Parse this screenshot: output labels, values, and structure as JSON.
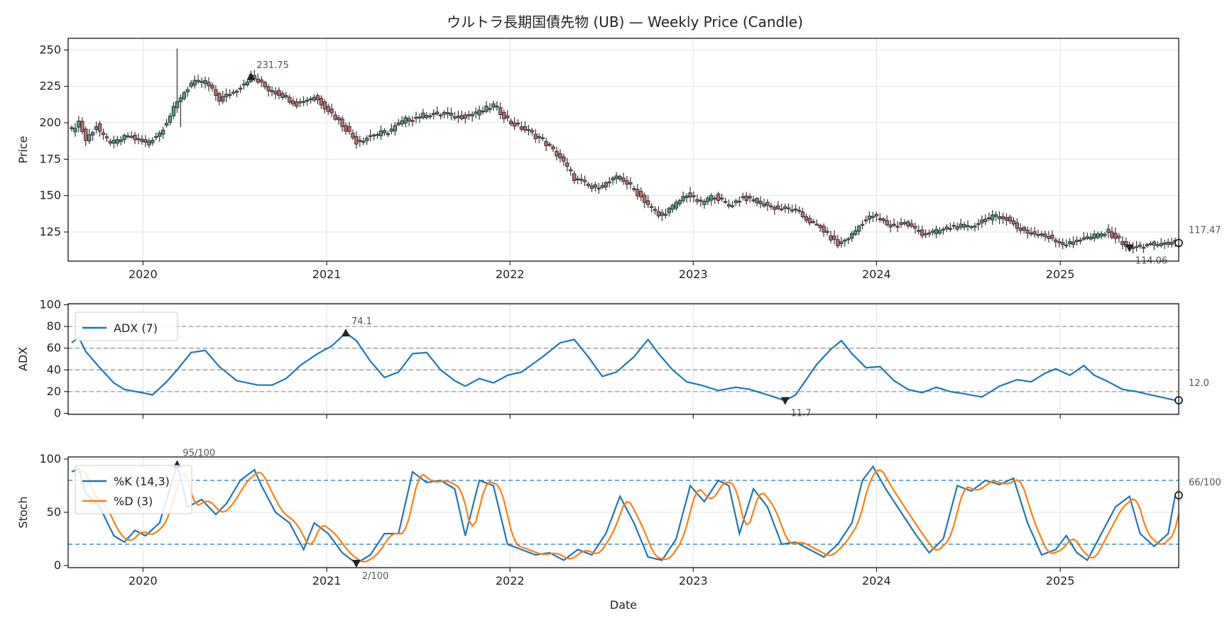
{
  "chart_data": {
    "title": "ウルトラ長期国債先物 (UB) — Weekly Price (Candle)",
    "xlabel": "Date",
    "x_ticks": [
      "2020",
      "2021",
      "2022",
      "2023",
      "2024",
      "2025"
    ],
    "colors": {
      "candle": "#333333",
      "up_fill": "#4b9a8a",
      "down_fill": "#c06a6a",
      "adx": "#1f77b4",
      "k": "#1f77b4",
      "d": "#ff7f0e",
      "hline_gray": "#999999",
      "hline_blue": "#1f77b4"
    },
    "panels": [
      {
        "name": "price",
        "type": "candlestick",
        "ylabel": "Price",
        "ylim": [
          105,
          258
        ],
        "yticks": [
          125,
          150,
          175,
          200,
          225,
          250
        ],
        "grid": true,
        "annotations": {
          "max": {
            "date": "2020-08-03",
            "value": 231.75,
            "label": "231.75"
          },
          "min": {
            "date": "2025-05-19",
            "value": 114.06,
            "label": "114.06"
          },
          "last": {
            "value": 117.47,
            "label": "117.47"
          }
        },
        "anchors": [
          [
            "2019-08-12",
            195
          ],
          [
            "2019-08-26",
            201
          ],
          [
            "2019-09-09",
            188
          ],
          [
            "2019-09-30",
            198
          ],
          [
            "2019-10-14",
            190
          ],
          [
            "2019-11-04",
            186
          ],
          [
            "2019-12-02",
            191
          ],
          [
            "2020-01-06",
            186
          ],
          [
            "2020-02-03",
            193
          ],
          [
            "2020-02-24",
            205
          ],
          [
            "2020-03-16",
            218
          ],
          [
            "2020-04-06",
            227
          ],
          [
            "2020-05-04",
            228
          ],
          [
            "2020-06-01",
            216
          ],
          [
            "2020-06-29",
            221
          ],
          [
            "2020-08-03",
            231.75
          ],
          [
            "2020-09-07",
            223
          ],
          [
            "2020-10-05",
            219
          ],
          [
            "2020-11-02",
            213
          ],
          [
            "2020-12-07",
            218
          ],
          [
            "2021-01-04",
            209
          ],
          [
            "2021-02-08",
            196
          ],
          [
            "2021-03-01",
            187
          ],
          [
            "2021-03-29",
            191
          ],
          [
            "2021-05-03",
            194
          ],
          [
            "2021-06-07",
            202
          ],
          [
            "2021-07-12",
            205
          ],
          [
            "2021-08-16",
            206
          ],
          [
            "2021-09-20",
            204
          ],
          [
            "2021-11-01",
            207
          ],
          [
            "2021-11-29",
            212
          ],
          [
            "2022-01-03",
            200
          ],
          [
            "2022-02-07",
            194
          ],
          [
            "2022-03-07",
            188
          ],
          [
            "2022-04-11",
            176
          ],
          [
            "2022-05-09",
            162
          ],
          [
            "2022-06-13",
            155
          ],
          [
            "2022-07-11",
            158
          ],
          [
            "2022-08-08",
            163
          ],
          [
            "2022-09-05",
            154
          ],
          [
            "2022-10-03",
            144
          ],
          [
            "2022-10-24",
            136
          ],
          [
            "2022-11-21",
            142
          ],
          [
            "2022-12-19",
            151
          ],
          [
            "2023-01-16",
            145
          ],
          [
            "2023-02-13",
            150
          ],
          [
            "2023-03-13",
            143
          ],
          [
            "2023-04-10",
            149
          ],
          [
            "2023-05-15",
            145
          ],
          [
            "2023-06-19",
            141
          ],
          [
            "2023-07-17",
            141
          ],
          [
            "2023-08-14",
            134
          ],
          [
            "2023-09-18",
            126
          ],
          [
            "2023-10-16",
            116
          ],
          [
            "2023-11-13",
            123
          ],
          [
            "2023-12-04",
            132
          ],
          [
            "2023-12-25",
            136
          ],
          [
            "2024-01-29",
            129
          ],
          [
            "2024-02-26",
            131
          ],
          [
            "2024-04-01",
            124
          ],
          [
            "2024-04-29",
            125
          ],
          [
            "2024-06-03",
            129
          ],
          [
            "2024-07-01",
            128
          ],
          [
            "2024-08-05",
            134
          ],
          [
            "2024-09-09",
            136
          ],
          [
            "2024-10-07",
            128
          ],
          [
            "2024-11-04",
            124
          ],
          [
            "2024-12-16",
            121
          ],
          [
            "2025-01-13",
            116
          ],
          [
            "2025-02-10",
            120
          ],
          [
            "2025-03-10",
            122
          ],
          [
            "2025-04-07",
            125
          ],
          [
            "2025-05-19",
            114.06
          ],
          [
            "2025-06-23",
            116
          ],
          [
            "2025-08-18",
            117.47
          ]
        ]
      },
      {
        "name": "adx",
        "type": "line",
        "ylabel": "ADX",
        "ylim": [
          -1,
          101
        ],
        "yticks": [
          0,
          20,
          40,
          60,
          80,
          100
        ],
        "hlines": [
          20,
          40,
          60,
          80
        ],
        "legend": [
          "ADX (7)"
        ],
        "annotations": {
          "max": {
            "date": "2021-02-08",
            "value": 74.1,
            "label": "74.1"
          },
          "min": {
            "date": "2023-07-03",
            "value": 11.7,
            "label": "11.7"
          },
          "last": {
            "value": 12.0,
            "label": "12.0"
          }
        },
        "anchors": [
          [
            "2019-08-12",
            65
          ],
          [
            "2019-08-26",
            70
          ],
          [
            "2019-09-09",
            57
          ],
          [
            "2019-10-07",
            42
          ],
          [
            "2019-11-04",
            28
          ],
          [
            "2019-11-25",
            22
          ],
          [
            "2019-12-30",
            19
          ],
          [
            "2020-01-20",
            17
          ],
          [
            "2020-02-17",
            29
          ],
          [
            "2020-03-09",
            40
          ],
          [
            "2020-04-06",
            56
          ],
          [
            "2020-05-04",
            58
          ],
          [
            "2020-06-01",
            43
          ],
          [
            "2020-07-06",
            30
          ],
          [
            "2020-07-27",
            28
          ],
          [
            "2020-08-17",
            26
          ],
          [
            "2020-09-14",
            26
          ],
          [
            "2020-10-12",
            32
          ],
          [
            "2020-11-09",
            44
          ],
          [
            "2020-12-14",
            55
          ],
          [
            "2021-01-11",
            62
          ],
          [
            "2021-02-08",
            74.1
          ],
          [
            "2021-03-01",
            67
          ],
          [
            "2021-03-29",
            48
          ],
          [
            "2021-04-26",
            33
          ],
          [
            "2021-05-24",
            38
          ],
          [
            "2021-06-21",
            55
          ],
          [
            "2021-07-19",
            56
          ],
          [
            "2021-08-16",
            40
          ],
          [
            "2021-09-13",
            30
          ],
          [
            "2021-10-04",
            25
          ],
          [
            "2021-11-01",
            32
          ],
          [
            "2021-11-29",
            28
          ],
          [
            "2021-12-27",
            35
          ],
          [
            "2022-01-24",
            38
          ],
          [
            "2022-03-07",
            52
          ],
          [
            "2022-04-11",
            65
          ],
          [
            "2022-05-09",
            68
          ],
          [
            "2022-06-06",
            52
          ],
          [
            "2022-07-04",
            34
          ],
          [
            "2022-08-01",
            38
          ],
          [
            "2022-09-05",
            52
          ],
          [
            "2022-10-03",
            68
          ],
          [
            "2022-10-24",
            55
          ],
          [
            "2022-11-21",
            40
          ],
          [
            "2022-12-19",
            29
          ],
          [
            "2023-01-16",
            26
          ],
          [
            "2023-02-20",
            21
          ],
          [
            "2023-03-27",
            24
          ],
          [
            "2023-04-24",
            22
          ],
          [
            "2023-05-29",
            17
          ],
          [
            "2023-07-03",
            11.7
          ],
          [
            "2023-07-24",
            17
          ],
          [
            "2023-09-04",
            45
          ],
          [
            "2023-10-02",
            59
          ],
          [
            "2023-10-23",
            67
          ],
          [
            "2023-11-13",
            55
          ],
          [
            "2023-12-11",
            42
          ],
          [
            "2024-01-08",
            43
          ],
          [
            "2024-02-05",
            30
          ],
          [
            "2024-03-04",
            22
          ],
          [
            "2024-04-01",
            19
          ],
          [
            "2024-04-29",
            24
          ],
          [
            "2024-05-27",
            20
          ],
          [
            "2024-06-24",
            18
          ],
          [
            "2024-07-29",
            15
          ],
          [
            "2024-09-02",
            25
          ],
          [
            "2024-10-07",
            31
          ],
          [
            "2024-11-04",
            29
          ],
          [
            "2024-12-02",
            37
          ],
          [
            "2024-12-23",
            41
          ],
          [
            "2025-01-20",
            35
          ],
          [
            "2025-02-17",
            44
          ],
          [
            "2025-03-10",
            35
          ],
          [
            "2025-04-07",
            29
          ],
          [
            "2025-05-05",
            22
          ],
          [
            "2025-06-02",
            20
          ],
          [
            "2025-06-30",
            17
          ],
          [
            "2025-08-18",
            12.0
          ]
        ]
      },
      {
        "name": "stoch",
        "type": "line",
        "ylabel": "Stoch",
        "ylim": [
          -2,
          102
        ],
        "yticks": [
          0,
          50,
          100
        ],
        "hlines": [
          20,
          80
        ],
        "legend": [
          "%K (14,3)",
          "%D (3)"
        ],
        "annotations": {
          "max": {
            "date": "2020-03-09",
            "value": 95,
            "label": "95/100"
          },
          "min": {
            "date": "2021-03-01",
            "value": 2,
            "label": "2/100"
          },
          "last": {
            "value": 66,
            "label": "66/100"
          }
        },
        "anchors": [
          [
            "2019-08-12",
            88
          ],
          [
            "2019-08-26",
            91
          ],
          [
            "2019-09-09",
            68
          ],
          [
            "2019-10-07",
            55
          ],
          [
            "2019-11-04",
            28
          ],
          [
            "2019-11-25",
            22
          ],
          [
            "2019-12-16",
            33
          ],
          [
            "2020-01-06",
            28
          ],
          [
            "2020-02-03",
            40
          ],
          [
            "2020-03-09",
            95
          ],
          [
            "2020-03-30",
            55
          ],
          [
            "2020-04-27",
            62
          ],
          [
            "2020-05-25",
            48
          ],
          [
            "2020-06-15",
            58
          ],
          [
            "2020-07-13",
            80
          ],
          [
            "2020-08-10",
            90
          ],
          [
            "2020-08-24",
            75
          ],
          [
            "2020-09-21",
            50
          ],
          [
            "2020-10-19",
            40
          ],
          [
            "2020-11-16",
            15
          ],
          [
            "2020-12-07",
            40
          ],
          [
            "2021-01-04",
            30
          ],
          [
            "2021-02-01",
            12
          ],
          [
            "2021-03-01",
            2
          ],
          [
            "2021-03-29",
            10
          ],
          [
            "2021-04-26",
            30
          ],
          [
            "2021-05-24",
            30
          ],
          [
            "2021-06-21",
            88
          ],
          [
            "2021-07-19",
            78
          ],
          [
            "2021-08-16",
            80
          ],
          [
            "2021-09-13",
            72
          ],
          [
            "2021-10-04",
            28
          ],
          [
            "2021-11-01",
            80
          ],
          [
            "2021-11-29",
            75
          ],
          [
            "2021-12-27",
            20
          ],
          [
            "2022-01-24",
            15
          ],
          [
            "2022-02-21",
            10
          ],
          [
            "2022-03-21",
            12
          ],
          [
            "2022-04-18",
            5
          ],
          [
            "2022-05-16",
            15
          ],
          [
            "2022-06-13",
            10
          ],
          [
            "2022-07-11",
            30
          ],
          [
            "2022-08-08",
            65
          ],
          [
            "2022-09-05",
            40
          ],
          [
            "2022-10-03",
            8
          ],
          [
            "2022-10-31",
            5
          ],
          [
            "2022-11-28",
            25
          ],
          [
            "2022-12-26",
            75
          ],
          [
            "2023-01-23",
            60
          ],
          [
            "2023-02-20",
            80
          ],
          [
            "2023-03-13",
            75
          ],
          [
            "2023-04-03",
            30
          ],
          [
            "2023-05-01",
            72
          ],
          [
            "2023-05-29",
            55
          ],
          [
            "2023-06-26",
            20
          ],
          [
            "2023-07-24",
            22
          ],
          [
            "2023-08-21",
            15
          ],
          [
            "2023-09-18",
            8
          ],
          [
            "2023-10-16",
            20
          ],
          [
            "2023-11-13",
            40
          ],
          [
            "2023-12-04",
            80
          ],
          [
            "2023-12-25",
            93
          ],
          [
            "2024-01-22",
            70
          ],
          [
            "2024-02-19",
            50
          ],
          [
            "2024-03-18",
            30
          ],
          [
            "2024-04-15",
            12
          ],
          [
            "2024-05-13",
            25
          ],
          [
            "2024-06-10",
            75
          ],
          [
            "2024-07-08",
            70
          ],
          [
            "2024-08-05",
            80
          ],
          [
            "2024-09-02",
            76
          ],
          [
            "2024-09-30",
            82
          ],
          [
            "2024-10-28",
            40
          ],
          [
            "2024-11-25",
            10
          ],
          [
            "2024-12-23",
            15
          ],
          [
            "2025-01-13",
            28
          ],
          [
            "2025-02-03",
            12
          ],
          [
            "2025-02-24",
            5
          ],
          [
            "2025-03-24",
            30
          ],
          [
            "2025-04-21",
            55
          ],
          [
            "2025-05-19",
            65
          ],
          [
            "2025-06-09",
            30
          ],
          [
            "2025-07-07",
            18
          ],
          [
            "2025-08-04",
            30
          ],
          [
            "2025-08-18",
            66
          ]
        ]
      }
    ]
  }
}
